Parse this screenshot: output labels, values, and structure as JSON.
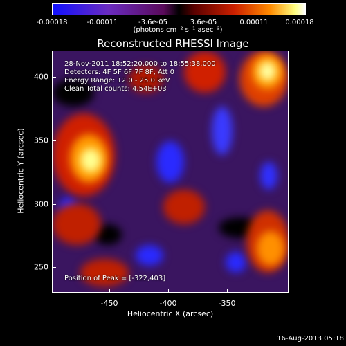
{
  "colorbar": {
    "ticks": [
      "-0.00018",
      "-0.00011",
      "-3.6e-05",
      "3.6e-05",
      "0.00011",
      "0.00018"
    ],
    "unit": "(photons cm⁻² s⁻¹ asec⁻²)"
  },
  "title": "Reconstructed RHESSI Image",
  "info": {
    "time_range": "28-Nov-2011 18:52:20.000 to 18:55:38.000",
    "detectors": "Detectors: 4F 5F 6F 7F 8F, Att 0",
    "energy": "Energy Range: 12.0 - 25.0 keV",
    "clean": "Clean    Total counts: 4.54E+03",
    "peak": "Position of Peak = [-322,403]"
  },
  "axes": {
    "xlabel": "Heliocentric X (arcsec)",
    "ylabel": "Heliocentric Y (arcsec)",
    "xticks": [
      "-450",
      "-400",
      "-350"
    ],
    "yticks": [
      "400",
      "350",
      "300",
      "250"
    ]
  },
  "footer_date": "16-Aug-2013 05:18",
  "colors": {
    "hot": "#ffff80",
    "orange": "#ff8a00",
    "red": "#cc2000",
    "purple": "#6a2bc0",
    "blue": "#2020ff"
  }
}
